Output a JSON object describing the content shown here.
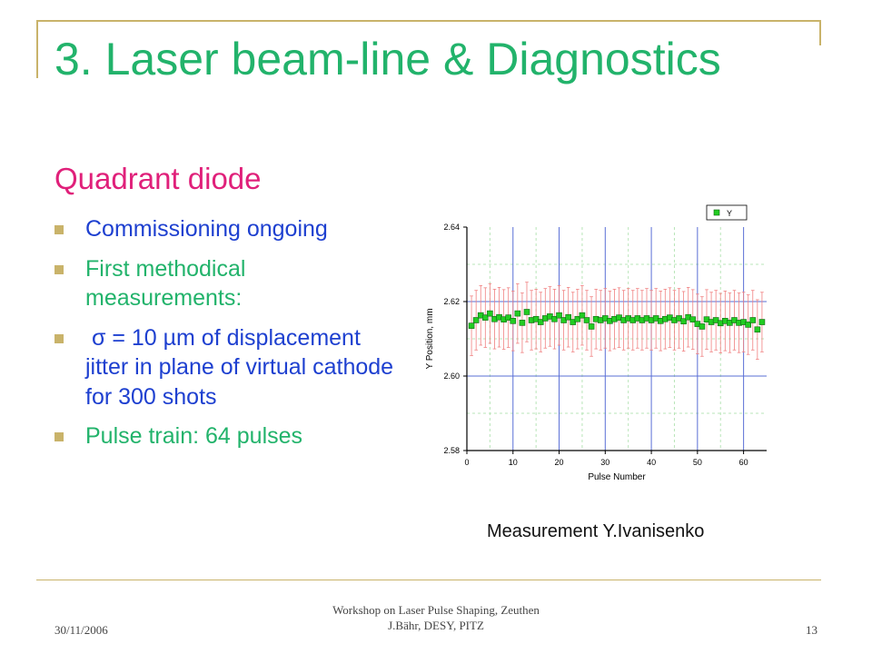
{
  "slide": {
    "title": "3. Laser beam-line & Diagnostics",
    "subtitle": "Quadrant diode",
    "bullets": [
      "Commissioning ongoing",
      "First methodical measurements:",
      " σ = 10 µm of displacement jitter in plane of virtual cathode for 300 shots",
      "Pulse train: 64 pulses"
    ],
    "caption": "Measurement Y.Ivanisenko"
  },
  "footer": {
    "date": "30/11/2006",
    "line1": "Workshop on Laser Pulse Shaping, Zeuthen",
    "line2": "J.Bähr, DESY, PITZ",
    "page": "13"
  },
  "colors": {
    "title": "#22b36b",
    "subtitle": "#e0207a",
    "bullet_blue": "#1e40d0",
    "bullet_green": "#22b36b",
    "frame": "#c9b36a",
    "marker": "#22cc22",
    "error_bar": "#f08080",
    "major_grid": "#5a6fd6",
    "minor_grid": "#b8e6b8"
  },
  "chart_data": {
    "type": "scatter",
    "xlabel": "Pulse Number",
    "ylabel": "Y Position, mm",
    "xlim": [
      0,
      65
    ],
    "ylim": [
      2.58,
      2.64
    ],
    "xticks": [
      0,
      10,
      20,
      30,
      40,
      50,
      60
    ],
    "xtick_labels": [
      "0",
      "10",
      "20",
      "30",
      "40",
      "50",
      "60"
    ],
    "yticks": [
      2.58,
      2.6,
      2.62,
      2.64
    ],
    "ytick_labels": [
      "2.58",
      "2.60",
      "2.62",
      "2.64"
    ],
    "grid": true,
    "legend_position": "top-right",
    "series": [
      {
        "name": "Y",
        "error": 0.008,
        "x": [
          1,
          2,
          3,
          4,
          5,
          6,
          7,
          8,
          9,
          10,
          11,
          12,
          13,
          14,
          15,
          16,
          17,
          18,
          19,
          20,
          21,
          22,
          23,
          24,
          25,
          26,
          27,
          28,
          29,
          30,
          31,
          32,
          33,
          34,
          35,
          36,
          37,
          38,
          39,
          40,
          41,
          42,
          43,
          44,
          45,
          46,
          47,
          48,
          49,
          50,
          51,
          52,
          53,
          54,
          55,
          56,
          57,
          58,
          59,
          60,
          61,
          62,
          63,
          64
        ],
        "y": [
          2.6135,
          2.615,
          2.6163,
          2.6157,
          2.6168,
          2.6153,
          2.6158,
          2.6152,
          2.6157,
          2.6148,
          2.6168,
          2.6143,
          2.6172,
          2.615,
          2.6153,
          2.6145,
          2.6155,
          2.616,
          2.6153,
          2.6163,
          2.615,
          2.6158,
          2.6145,
          2.6153,
          2.6163,
          2.615,
          2.6133,
          2.6153,
          2.615,
          2.6155,
          2.6148,
          2.6153,
          2.6157,
          2.615,
          2.6155,
          2.615,
          2.6155,
          2.615,
          2.6155,
          2.615,
          2.6155,
          2.6148,
          2.6153,
          2.6157,
          2.615,
          2.6155,
          2.6147,
          2.6158,
          2.6152,
          2.614,
          2.6133,
          2.6152,
          2.6145,
          2.615,
          2.6142,
          2.6148,
          2.6143,
          2.615,
          2.6143,
          2.6145,
          2.6138,
          2.615,
          2.6125,
          2.6145
        ]
      }
    ]
  }
}
